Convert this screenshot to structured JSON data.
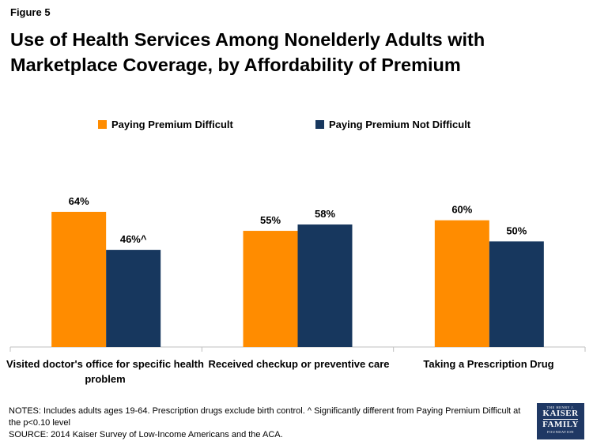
{
  "figure_label": "Figure 5",
  "title": "Use of Health Services Among Nonelderly Adults with Marketplace Coverage, by Affordability of Premium",
  "colors": {
    "difficult": "#ff8c00",
    "not_difficult": "#17375e",
    "axis": "#bfbfbf"
  },
  "chart_data": {
    "type": "bar",
    "categories": [
      "Visited doctor's office for specific health problem",
      "Received checkup or preventive care",
      "Taking a Prescription Drug"
    ],
    "series": [
      {
        "name": "Paying Premium Difficult",
        "values": [
          64,
          55,
          60
        ],
        "labels": [
          "64%",
          "55%",
          "60%"
        ]
      },
      {
        "name": "Paying Premium Not Difficult",
        "values": [
          46,
          58,
          50
        ],
        "labels": [
          "46%^",
          "58%",
          "50%"
        ]
      }
    ],
    "ylim": [
      0,
      64
    ],
    "legend_position": "top"
  },
  "notes": "NOTES: Includes adults ages 19-64. Prescription drugs exclude birth control. ^ Significantly different from Paying Premium Difficult at the p<0.10 level",
  "source": "SOURCE: 2014 Kaiser Survey of Low-Income Americans and the ACA.",
  "logo": {
    "line1": "THE HENRY J.",
    "line2": "KAISER",
    "line3": "FAMILY",
    "line4": "FOUNDATION"
  }
}
